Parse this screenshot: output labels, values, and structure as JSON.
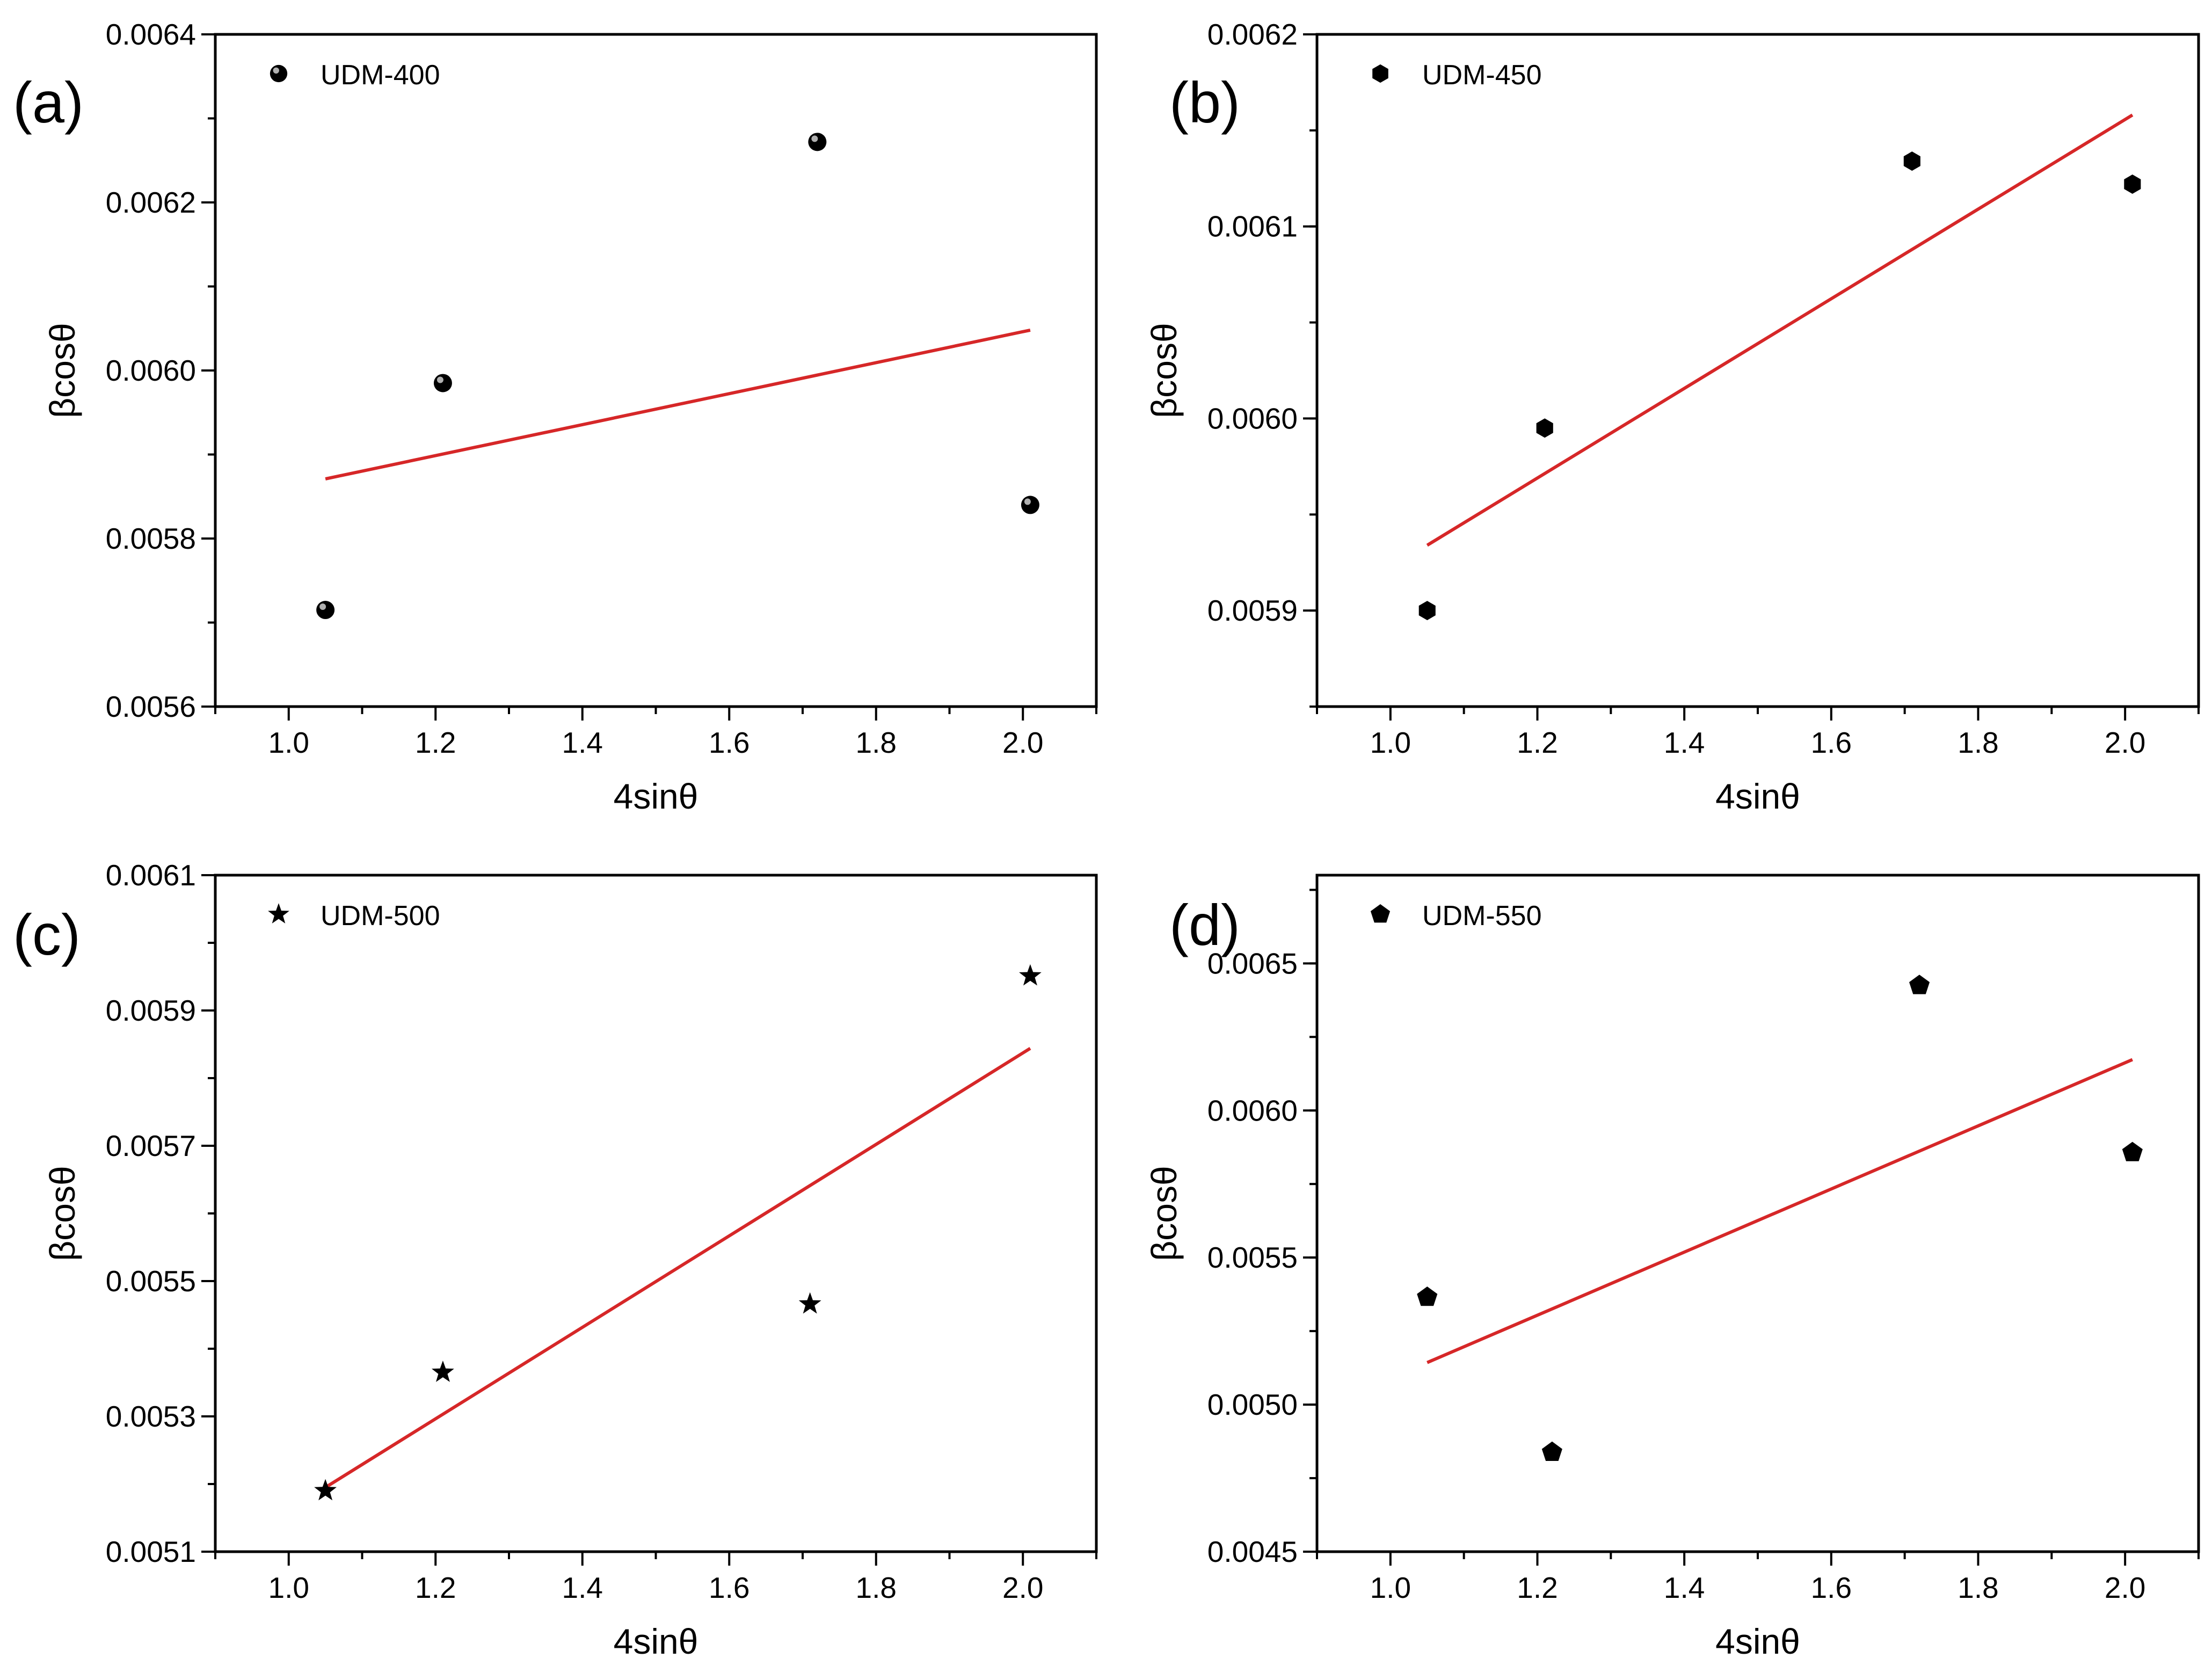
{
  "figure": {
    "colors": {
      "fit_line": "#d62728",
      "marker": "#000000",
      "axis": "#000000"
    }
  },
  "chart_data": [
    {
      "type": "scatter",
      "panel_label": "(a)",
      "title": "",
      "xlabel": "4sinθ",
      "ylabel": "βcosθ",
      "xlim": [
        0.9,
        2.1
      ],
      "ylim": [
        0.0056,
        0.0064
      ],
      "xticks": [
        1.0,
        1.2,
        1.4,
        1.6,
        1.8,
        2.0
      ],
      "xtick_labels": [
        "1.0",
        "1.2",
        "1.4",
        "1.6",
        "1.8",
        "2.0"
      ],
      "yticks": [
        0.0056,
        0.0058,
        0.006,
        0.0062,
        0.0064
      ],
      "ytick_labels": [
        "0.0056",
        "0.0058",
        "0.0060",
        "0.0062",
        "0.0064"
      ],
      "series": [
        {
          "name": "UDM-400",
          "marker": "sphere-icon",
          "x": [
            1.05,
            1.21,
            1.72,
            2.01
          ],
          "y": [
            0.005715,
            0.005985,
            0.006272,
            0.00584
          ]
        }
      ],
      "fit_line": {
        "x": [
          1.05,
          2.01
        ],
        "y": [
          0.005871,
          0.006048
        ]
      },
      "legend": {
        "position": "top-left",
        "entries": [
          "UDM-400"
        ]
      }
    },
    {
      "type": "scatter",
      "panel_label": "(b)",
      "title": "",
      "xlabel": "4sinθ",
      "ylabel": "βcosθ",
      "xlim": [
        0.9,
        2.1
      ],
      "ylim": [
        0.00585,
        0.0062
      ],
      "xticks": [
        1.0,
        1.2,
        1.4,
        1.6,
        1.8,
        2.0
      ],
      "xtick_labels": [
        "1.0",
        "1.2",
        "1.4",
        "1.6",
        "1.8",
        "2.0"
      ],
      "yticks": [
        0.0059,
        0.006,
        0.0061,
        0.0062
      ],
      "ytick_labels": [
        "0.0059",
        "0.0060",
        "0.0061",
        "0.0062"
      ],
      "series": [
        {
          "name": "UDM-450",
          "marker": "hexagon-icon",
          "x": [
            1.05,
            1.21,
            1.71,
            2.01
          ],
          "y": [
            0.0059,
            0.005995,
            0.006134,
            0.006122
          ]
        }
      ],
      "fit_line": {
        "x": [
          1.05,
          2.01
        ],
        "y": [
          0.005934,
          0.006158
        ]
      },
      "legend": {
        "position": "top-left",
        "entries": [
          "UDM-450"
        ]
      }
    },
    {
      "type": "scatter",
      "panel_label": "(c)",
      "title": "",
      "xlabel": "4sinθ",
      "ylabel": "βcosθ",
      "xlim": [
        0.9,
        2.1
      ],
      "ylim": [
        0.0051,
        0.0061
      ],
      "xticks": [
        1.0,
        1.2,
        1.4,
        1.6,
        1.8,
        2.0
      ],
      "xtick_labels": [
        "1.0",
        "1.2",
        "1.4",
        "1.6",
        "1.8",
        "2.0"
      ],
      "yticks": [
        0.0051,
        0.0053,
        0.0055,
        0.0057,
        0.0059,
        0.0061
      ],
      "ytick_labels": [
        "0.0051",
        "0.0053",
        "0.0055",
        "0.0057",
        "0.0059",
        "0.0061"
      ],
      "series": [
        {
          "name": "UDM-500",
          "marker": "star-icon",
          "x": [
            1.05,
            1.21,
            1.71,
            2.01
          ],
          "y": [
            0.00519,
            0.005365,
            0.005466,
            0.005951
          ]
        }
      ],
      "fit_line": {
        "x": [
          1.05,
          2.01
        ],
        "y": [
          0.005195,
          0.005844
        ]
      },
      "legend": {
        "position": "top-left",
        "entries": [
          "UDM-500"
        ]
      }
    },
    {
      "type": "scatter",
      "panel_label": "(d)",
      "title": "",
      "xlabel": "4sinθ",
      "ylabel": "βcosθ",
      "xlim": [
        0.9,
        2.1
      ],
      "ylim": [
        0.0045,
        0.0068
      ],
      "xticks": [
        1.0,
        1.2,
        1.4,
        1.6,
        1.8,
        2.0
      ],
      "xtick_labels": [
        "1.0",
        "1.2",
        "1.4",
        "1.6",
        "1.8",
        "2.0"
      ],
      "yticks": [
        0.0045,
        0.005,
        0.0055,
        0.006,
        0.0065
      ],
      "ytick_labels": [
        "0.0045",
        "0.0050",
        "0.0055",
        "0.0060",
        "0.0065"
      ],
      "series": [
        {
          "name": "UDM-550",
          "marker": "pentagon-icon",
          "x": [
            1.05,
            1.22,
            1.72,
            2.01
          ],
          "y": [
            0.005365,
            0.004838,
            0.006425,
            0.005857
          ]
        }
      ],
      "fit_line": {
        "x": [
          1.05,
          2.01
        ],
        "y": [
          0.005143,
          0.006173
        ]
      },
      "legend": {
        "position": "top-left",
        "entries": [
          "UDM-550"
        ]
      }
    }
  ]
}
